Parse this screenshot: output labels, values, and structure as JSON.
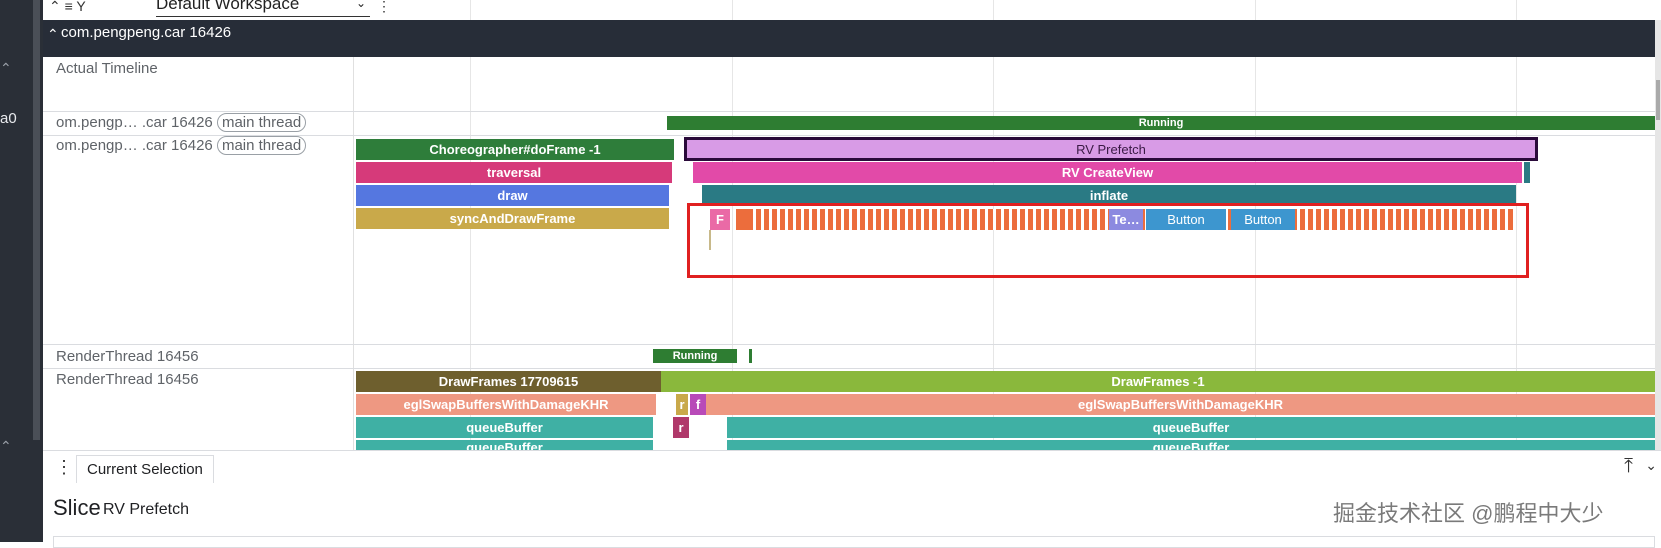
{
  "workspace": {
    "selected": "Default Workspace"
  },
  "left_gutter": {
    "partial_text": "a0"
  },
  "process": {
    "title": "com.pengpeng.car 16426"
  },
  "tracks": [
    {
      "name": "Actual Timeline",
      "pill": ""
    },
    {
      "name": "om.pengp… .car 16426",
      "pill": "main thread"
    },
    {
      "name": "om.pengp… .car 16426",
      "pill": "main thread"
    },
    {
      "name": "RenderThread 16456",
      "pill": ""
    },
    {
      "name": "RenderThread 16456",
      "pill": ""
    }
  ],
  "slices": {
    "running_main": "Running",
    "choreographer": "Choreographer#doFrame -1",
    "traversal": "traversal",
    "draw": "draw",
    "sync": "syncAndDrawFrame",
    "rv_prefetch": "RV Prefetch",
    "rv_createview": "RV CreateView",
    "inflate": "inflate",
    "f_small": "F",
    "te": "Te…",
    "button1": "Button",
    "button2": "Button",
    "running_render": "Running",
    "drawframes1": "DrawFrames 17709615",
    "drawframes2": "DrawFrames -1",
    "egl1": "eglSwapBuffersWithDamageKHR",
    "egl2": "eglSwapBuffersWithDamageKHR",
    "egl_r": "r",
    "egl_f": "f",
    "qb1": "queueBuffer",
    "qb2": "queueBuffer",
    "qb_r": "r",
    "qb3": "queueBuffer",
    "qb4": "queueBuffer"
  },
  "colors": {
    "dark_green": "#2e7d3a",
    "running_green": "#2e7d32",
    "pink": "#d63a7a",
    "blue": "#5577e0",
    "mustard": "#c9a94a",
    "lavender": "#d89be6",
    "magenta": "#e24aa8",
    "teal": "#2a7a84",
    "orange": "#ec6d3c",
    "olive": "#6e5f2e",
    "lime": "#8ab83c",
    "salmon": "#ee9882",
    "sea": "#3fb0a4",
    "button_blue": "#3d96cf",
    "highlight_red": "#e02020"
  },
  "bottom_panel": {
    "tab": "Current Selection",
    "slice_word": "Slice",
    "slice_name": "RV Prefetch",
    "watermark": "掘金技术社区 @鹏程中大少"
  }
}
